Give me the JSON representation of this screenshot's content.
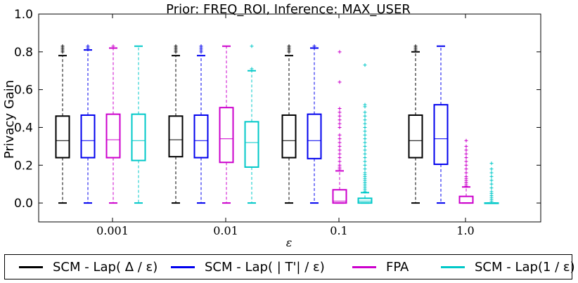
{
  "chart_data": {
    "type": "boxplot",
    "title": "Prior: FREQ_ROI, Inference: MAX_USER",
    "xlabel": "ε",
    "ylabel": "Privacy Gain",
    "ylim": [
      -0.1,
      1.0
    ],
    "yticks": [
      "0.0",
      "0.2",
      "0.4",
      "0.6",
      "0.8",
      "1.0"
    ],
    "categories": [
      "0.001",
      "0.01",
      "0.1",
      "1.0"
    ],
    "series": [
      {
        "name": "SCM - Lap( Δ / ε)",
        "color": "#000000",
        "boxes": [
          {
            "q1": 0.24,
            "median": 0.33,
            "q3": 0.46,
            "whisker_low": 0.0,
            "whisker_high": 0.78,
            "outliers": [
              0.8,
              0.81,
              0.82,
              0.83
            ]
          },
          {
            "q1": 0.245,
            "median": 0.335,
            "q3": 0.46,
            "whisker_low": 0.0,
            "whisker_high": 0.78,
            "outliers": [
              0.8,
              0.81,
              0.82,
              0.83
            ]
          },
          {
            "q1": 0.24,
            "median": 0.33,
            "q3": 0.465,
            "whisker_low": 0.0,
            "whisker_high": 0.78,
            "outliers": [
              0.8,
              0.81,
              0.82,
              0.83
            ]
          },
          {
            "q1": 0.24,
            "median": 0.33,
            "q3": 0.465,
            "whisker_low": 0.0,
            "whisker_high": 0.8,
            "outliers": [
              0.81,
              0.82,
              0.83
            ]
          }
        ]
      },
      {
        "name": "SCM - Lap( | T'| / ε)",
        "color": "#0000ee",
        "boxes": [
          {
            "q1": 0.24,
            "median": 0.33,
            "q3": 0.465,
            "whisker_low": 0.0,
            "whisker_high": 0.81,
            "outliers": [
              0.82,
              0.83
            ]
          },
          {
            "q1": 0.24,
            "median": 0.33,
            "q3": 0.465,
            "whisker_low": 0.0,
            "whisker_high": 0.78,
            "outliers": [
              0.8,
              0.81,
              0.82,
              0.83
            ]
          },
          {
            "q1": 0.235,
            "median": 0.33,
            "q3": 0.47,
            "whisker_low": 0.0,
            "whisker_high": 0.82,
            "outliers": [
              0.83
            ]
          },
          {
            "q1": 0.205,
            "median": 0.34,
            "q3": 0.52,
            "whisker_low": 0.0,
            "whisker_high": 0.83,
            "outliers": []
          }
        ]
      },
      {
        "name": "FPA",
        "color": "#cc00cc",
        "boxes": [
          {
            "q1": 0.24,
            "median": 0.335,
            "q3": 0.47,
            "whisker_low": 0.0,
            "whisker_high": 0.82,
            "outliers": [
              0.83
            ]
          },
          {
            "q1": 0.215,
            "median": 0.34,
            "q3": 0.505,
            "whisker_low": 0.0,
            "whisker_high": 0.83,
            "outliers": []
          },
          {
            "q1": 0.0,
            "median": 0.01,
            "q3": 0.07,
            "whisker_low": 0.0,
            "whisker_high": 0.17,
            "outliers": [
              0.18,
              0.19,
              0.2,
              0.22,
              0.24,
              0.26,
              0.28,
              0.3,
              0.32,
              0.34,
              0.36,
              0.4,
              0.42,
              0.44,
              0.46,
              0.48,
              0.5,
              0.64,
              0.8
            ]
          },
          {
            "q1": 0.0,
            "median": 0.0,
            "q3": 0.035,
            "whisker_low": 0.0,
            "whisker_high": 0.085,
            "outliers": [
              0.09,
              0.1,
              0.11,
              0.12,
              0.13,
              0.14,
              0.16,
              0.18,
              0.2,
              0.22,
              0.24,
              0.26,
              0.28,
              0.3,
              0.33
            ]
          }
        ]
      },
      {
        "name": "SCM - Lap(1 / ε)",
        "color": "#00c8c8",
        "boxes": [
          {
            "q1": 0.225,
            "median": 0.33,
            "q3": 0.47,
            "whisker_low": 0.0,
            "whisker_high": 0.83,
            "outliers": []
          },
          {
            "q1": 0.19,
            "median": 0.32,
            "q3": 0.43,
            "whisker_low": 0.0,
            "whisker_high": 0.7,
            "outliers": [
              0.71,
              0.83
            ]
          },
          {
            "q1": 0.0,
            "median": 0.01,
            "q3": 0.025,
            "whisker_low": 0.0,
            "whisker_high": 0.055,
            "outliers": [
              0.06,
              0.07,
              0.08,
              0.09,
              0.1,
              0.11,
              0.12,
              0.13,
              0.14,
              0.15,
              0.16,
              0.18,
              0.2,
              0.22,
              0.24,
              0.26,
              0.28,
              0.3,
              0.32,
              0.34,
              0.36,
              0.38,
              0.4,
              0.42,
              0.44,
              0.46,
              0.48,
              0.51,
              0.52,
              0.73
            ]
          },
          {
            "q1": 0.0,
            "median": 0.0,
            "q3": 0.0,
            "whisker_low": 0.0,
            "whisker_high": 0.0,
            "outliers": [
              0.01,
              0.02,
              0.03,
              0.04,
              0.05,
              0.06,
              0.08,
              0.1,
              0.12,
              0.14,
              0.16,
              0.18,
              0.21
            ]
          }
        ]
      }
    ],
    "legend_position": "bottom"
  },
  "legend": {
    "items": [
      {
        "label": "SCM - Lap( Δ / ε)",
        "color": "#000000"
      },
      {
        "label": "SCM - Lap( | T'| / ε)",
        "color": "#0000ee"
      },
      {
        "label": "FPA",
        "color": "#cc00cc"
      },
      {
        "label": "SCM - Lap(1 / ε)",
        "color": "#00c8c8"
      }
    ]
  }
}
